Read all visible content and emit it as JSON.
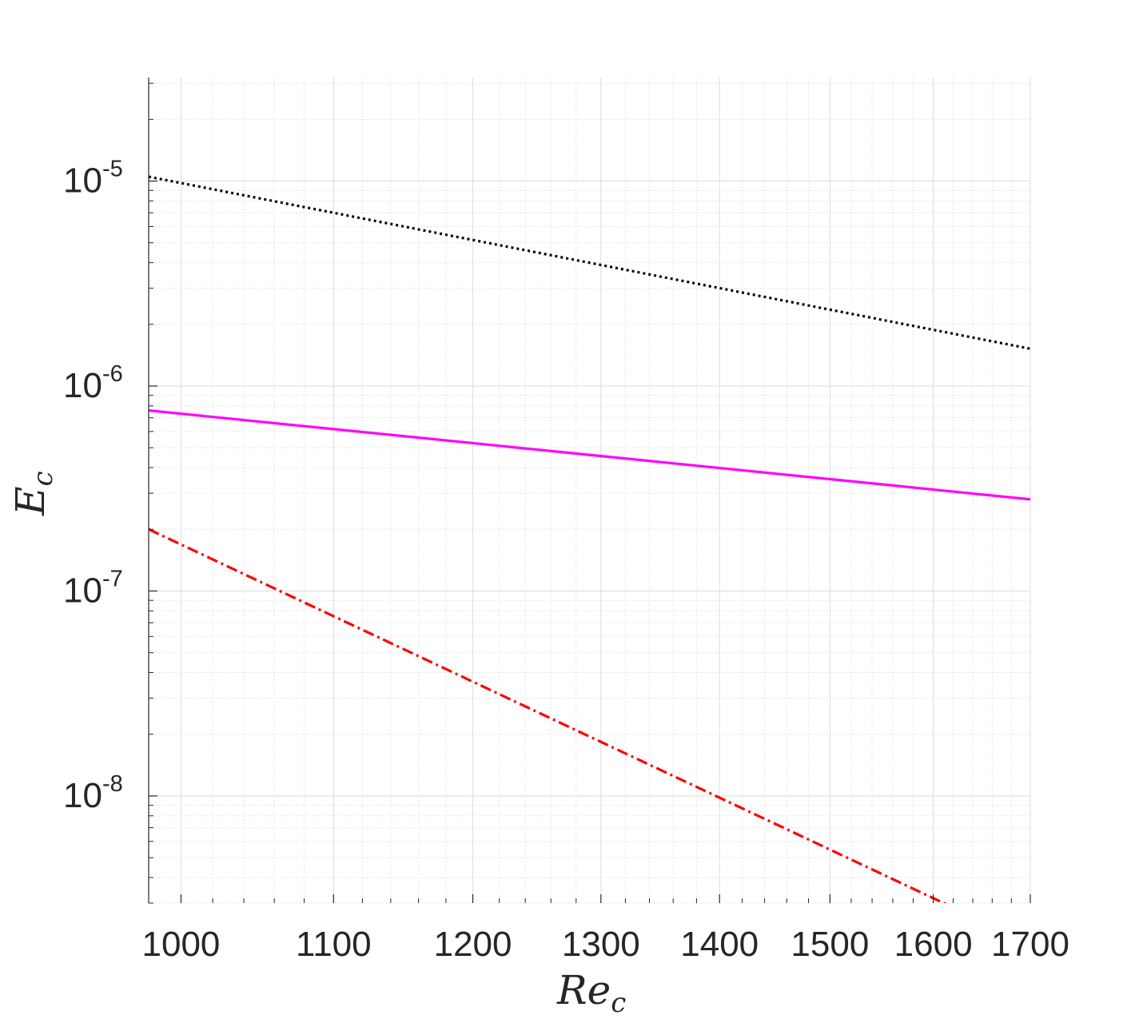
{
  "chart_data": {
    "type": "line",
    "xscale": "log",
    "yscale": "log",
    "xlim": [
      980,
      1700
    ],
    "ylim": [
      3e-09,
      3.2e-05
    ],
    "grid": true,
    "minor_grid": true,
    "xlabel": {
      "main": "Re",
      "sub": "c"
    },
    "ylabel": {
      "main": "E",
      "sub": "c"
    },
    "x_ticks": [
      1000,
      1100,
      1200,
      1300,
      1400,
      1500,
      1600,
      1700
    ],
    "x_tick_labels": [
      "1000",
      "1100",
      "1200",
      "1300",
      "1400",
      "1500",
      "1600",
      "1700"
    ],
    "y_ticks": [
      1e-08,
      1e-07,
      1e-06,
      1e-05
    ],
    "y_tick_labels": [
      {
        "base": "10",
        "exp": "-8"
      },
      {
        "base": "10",
        "exp": "-7"
      },
      {
        "base": "10",
        "exp": "-6"
      },
      {
        "base": "10",
        "exp": "-5"
      }
    ],
    "series": [
      {
        "color": "#000000",
        "style": "dotted",
        "x": [
          980,
          1700
        ],
        "y": [
          1.05e-05,
          1.52e-06
        ]
      },
      {
        "color": "#ff00ff",
        "style": "solid",
        "x": [
          980,
          1700
        ],
        "y": [
          7.6e-07,
          2.8e-07
        ]
      },
      {
        "color": "#ff0000",
        "style": "dashdot",
        "x": [
          980,
          1700
        ],
        "y": [
          2e-07,
          1.9e-09
        ]
      }
    ]
  }
}
